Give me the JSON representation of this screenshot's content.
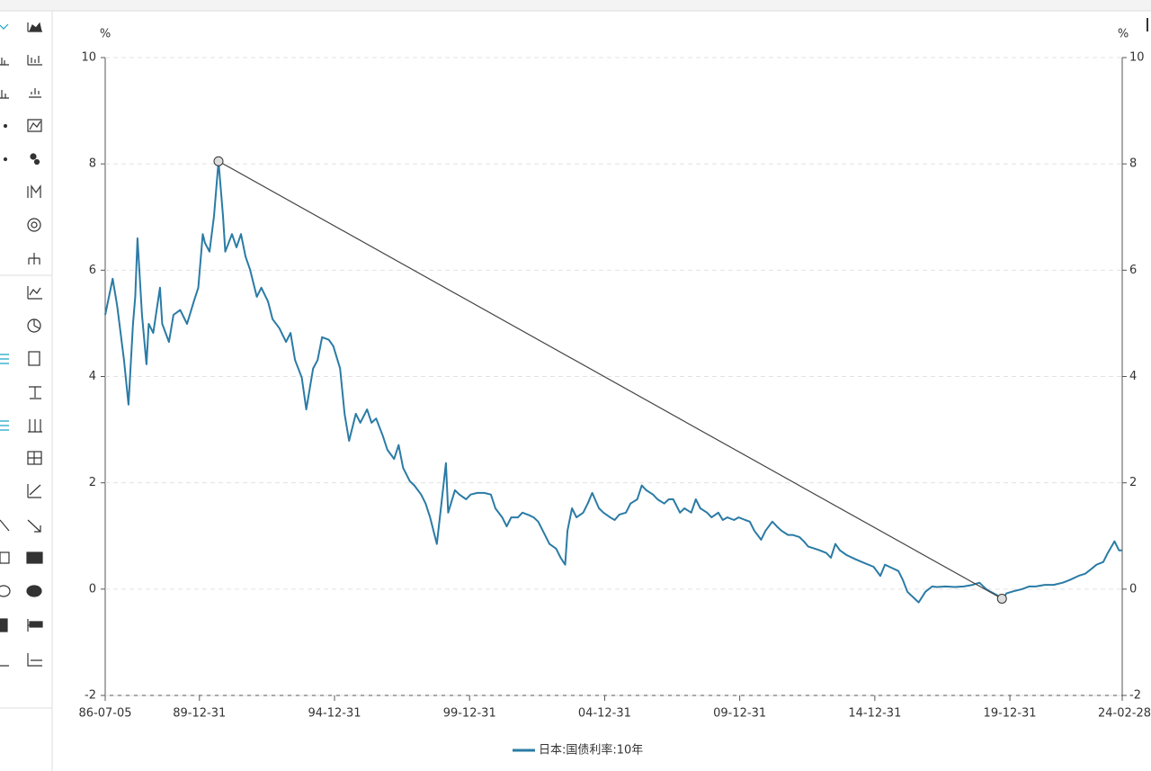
{
  "chart_data": {
    "type": "line",
    "y_unit": "%",
    "y2_unit": "%",
    "xlim": [
      "86-07-05",
      "24-02-28"
    ],
    "xticks": [
      "86-07-05",
      "89-12-31",
      "94-12-31",
      "99-12-31",
      "04-12-31",
      "09-12-31",
      "14-12-31",
      "19-12-31",
      "24-02-28"
    ],
    "ylim": [
      -2,
      10
    ],
    "yticks": [
      -2,
      0,
      2,
      4,
      6,
      8,
      10
    ],
    "y2lim": [
      -2,
      10
    ],
    "y2ticks": [
      -2,
      0,
      2,
      4,
      6,
      8,
      10
    ],
    "grid": true,
    "legend": "bottom",
    "x": [
      "86-07-05",
      "86-10-15",
      "86-12-15",
      "87-03-15",
      "87-05-15",
      "87-07-15",
      "87-08-15",
      "87-09-15",
      "87-11-15",
      "88-01-15",
      "88-02-15",
      "88-04-15",
      "88-07-15",
      "88-08-15",
      "88-11-15",
      "89-01-15",
      "89-04-15",
      "89-07-15",
      "89-10-15",
      "89-12-15",
      "90-02-15",
      "90-03-15",
      "90-05-15",
      "90-07-15",
      "90-09-15",
      "90-11-15",
      "90-12-15",
      "91-03-15",
      "91-05-15",
      "91-07-15",
      "91-09-15",
      "91-11-15",
      "92-02-15",
      "92-04-15",
      "92-07-15",
      "92-09-15",
      "92-12-15",
      "93-03-15",
      "93-05-15",
      "93-07-15",
      "93-10-15",
      "93-12-15",
      "94-03-15",
      "94-05-15",
      "94-07-15",
      "94-10-15",
      "94-12-15",
      "95-03-15",
      "95-05-15",
      "95-07-15",
      "95-10-15",
      "95-12-15",
      "96-03-15",
      "96-05-15",
      "96-07-15",
      "96-10-15",
      "96-12-15",
      "97-03-15",
      "97-05-15",
      "97-07-15",
      "97-10-15",
      "97-12-15",
      "98-03-15",
      "98-05-15",
      "98-07-15",
      "98-10-15",
      "98-12-15",
      "99-02-15",
      "99-03-15",
      "99-06-15",
      "99-08-15",
      "99-11-15",
      "00-01-15",
      "00-04-15",
      "00-07-15",
      "00-10-15",
      "00-12-15",
      "01-03-15",
      "01-05-15",
      "01-07-15",
      "01-10-15",
      "01-12-15",
      "02-03-15",
      "02-05-15",
      "02-07-15",
      "02-10-15",
      "02-12-15",
      "03-03-15",
      "03-05-15",
      "03-07-15",
      "03-08-15",
      "03-10-15",
      "03-12-15",
      "04-03-15",
      "04-05-15",
      "04-07-15",
      "04-10-15",
      "04-12-15",
      "05-03-15",
      "05-05-15",
      "05-07-15",
      "05-10-15",
      "05-12-15",
      "06-03-15",
      "06-05-15",
      "06-07-15",
      "06-10-15",
      "06-12-15",
      "07-03-15",
      "07-05-15",
      "07-07-15",
      "07-10-15",
      "07-12-15",
      "08-03-15",
      "08-05-15",
      "08-07-15",
      "08-10-15",
      "08-12-15",
      "09-03-15",
      "09-05-15",
      "09-07-15",
      "09-10-15",
      "09-12-15",
      "10-03-15",
      "10-05-15",
      "10-07-15",
      "10-10-15",
      "10-12-15",
      "11-03-15",
      "11-05-15",
      "11-07-15",
      "11-10-15",
      "11-12-15",
      "12-03-15",
      "12-05-15",
      "12-07-15",
      "12-10-15",
      "12-12-15",
      "13-03-15",
      "13-05-15",
      "13-07-15",
      "13-09-15",
      "13-12-15",
      "14-04-15",
      "14-08-15",
      "14-12-15",
      "15-03-15",
      "15-05-15",
      "15-07-15",
      "15-11-15",
      "16-01-15",
      "16-03-15",
      "16-06-15",
      "16-08-15",
      "16-11-15",
      "17-02-15",
      "17-04-15",
      "17-08-15",
      "17-12-15",
      "18-04-15",
      "18-08-15",
      "18-11-15",
      "19-02-15",
      "19-04-15",
      "19-07-15",
      "19-09-15",
      "19-11-15",
      "20-03-15",
      "20-06-15",
      "20-09-15",
      "20-12-15",
      "21-04-15",
      "21-08-15",
      "21-12-15",
      "22-03-15",
      "22-07-15",
      "22-10-15",
      "23-01-15",
      "23-03-15",
      "23-06-15",
      "23-08-15",
      "23-11-15",
      "24-01-15",
      "24-02-28"
    ],
    "series": [
      {
        "name": "日本:国债利率:10年",
        "color": "#2a7ba5",
        "values": [
          5.16,
          5.84,
          5.33,
          4.31,
          3.47,
          4.99,
          5.5,
          6.6,
          5.16,
          4.23,
          4.99,
          4.82,
          5.67,
          4.99,
          4.65,
          5.16,
          5.25,
          4.99,
          5.41,
          5.67,
          6.68,
          6.51,
          6.35,
          7.02,
          8.05,
          7.02,
          6.35,
          6.68,
          6.43,
          6.68,
          6.26,
          6.01,
          5.5,
          5.67,
          5.41,
          5.08,
          4.91,
          4.65,
          4.82,
          4.31,
          3.98,
          3.38,
          4.15,
          4.31,
          4.74,
          4.69,
          4.57,
          4.15,
          3.3,
          2.79,
          3.3,
          3.13,
          3.38,
          3.13,
          3.21,
          2.88,
          2.62,
          2.45,
          2.71,
          2.28,
          2.03,
          1.95,
          1.78,
          1.61,
          1.35,
          0.85,
          1.61,
          2.37,
          1.44,
          1.86,
          1.78,
          1.69,
          1.78,
          1.81,
          1.81,
          1.78,
          1.52,
          1.35,
          1.18,
          1.35,
          1.35,
          1.44,
          1.39,
          1.35,
          1.27,
          1.02,
          0.85,
          0.76,
          0.59,
          0.46,
          1.1,
          1.52,
          1.35,
          1.44,
          1.61,
          1.81,
          1.52,
          1.44,
          1.35,
          1.3,
          1.4,
          1.44,
          1.61,
          1.69,
          1.95,
          1.86,
          1.78,
          1.69,
          1.61,
          1.69,
          1.69,
          1.44,
          1.52,
          1.44,
          1.69,
          1.52,
          1.44,
          1.35,
          1.44,
          1.3,
          1.35,
          1.3,
          1.35,
          1.3,
          1.27,
          1.1,
          0.93,
          1.1,
          1.27,
          1.18,
          1.1,
          1.02,
          1.02,
          0.98,
          0.9,
          0.8,
          0.76,
          0.73,
          0.68,
          0.59,
          0.85,
          0.73,
          0.64,
          0.56,
          0.49,
          0.42,
          0.25,
          0.46,
          0.42,
          0.34,
          0.17,
          -0.05,
          -0.17,
          -0.25,
          -0.05,
          0.05,
          0.04,
          0.05,
          0.04,
          0.05,
          0.08,
          0.12,
          0,
          -0.05,
          -0.12,
          -0.22,
          -0.08,
          -0.03,
          0,
          0.05,
          0.05,
          0.08,
          0.08,
          0.12,
          0.17,
          0.25,
          0.29,
          0.39,
          0.46,
          0.51,
          0.68,
          0.9,
          0.73,
          0.73
        ]
      }
    ],
    "trend_line": {
      "x": [
        "90-09-15",
        "19-09-15"
      ],
      "y": [
        8.05,
        -0.18
      ]
    }
  }
}
